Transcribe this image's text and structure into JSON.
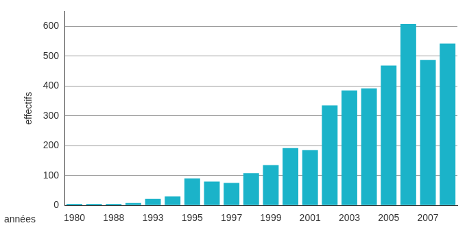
{
  "chart_data": {
    "type": "bar",
    "x_label": "années",
    "y_label": "effectifs",
    "categories": [
      "1980",
      null,
      "1988",
      null,
      "1993",
      null,
      "1995",
      null,
      "1997",
      null,
      "1999",
      null,
      "2001",
      null,
      "2003",
      null,
      "2005",
      null,
      "2007",
      null
    ],
    "values": [
      5,
      5,
      5,
      8,
      22,
      30,
      90,
      80,
      75,
      108,
      135,
      192,
      185,
      335,
      385,
      392,
      468,
      607,
      487,
      542
    ],
    "color": "#1bb3c9",
    "ylim": [
      0,
      650
    ],
    "yticks": [
      0,
      100,
      200,
      300,
      400,
      500,
      600
    ],
    "grid": true
  }
}
